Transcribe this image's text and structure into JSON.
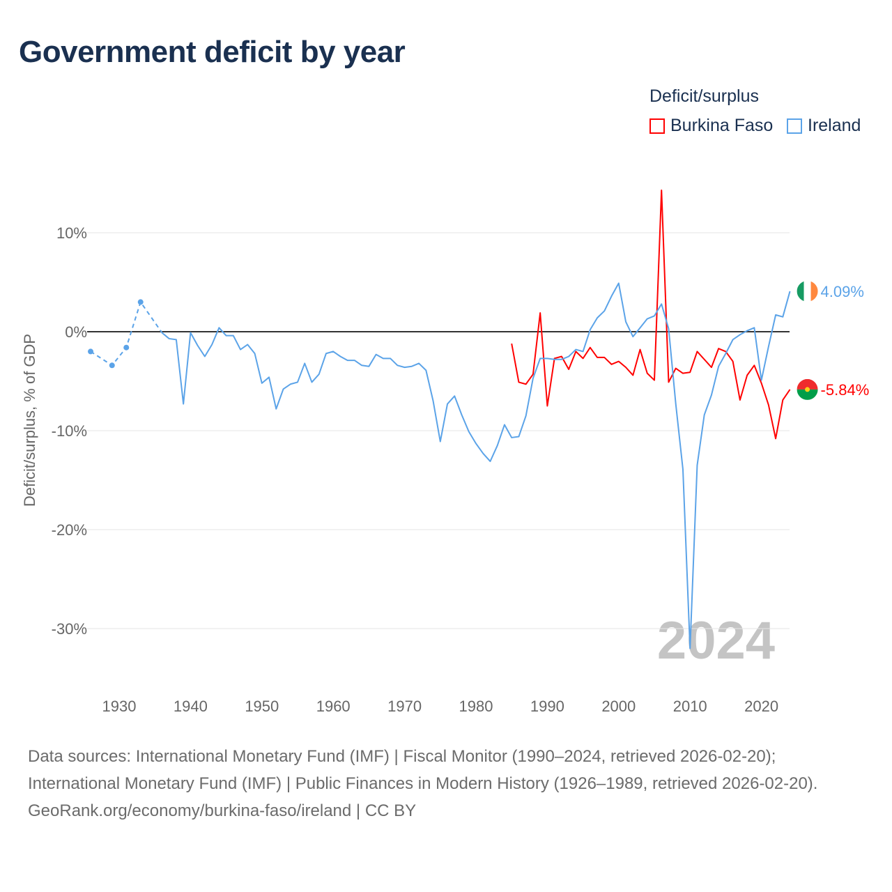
{
  "chart_data": {
    "type": "line",
    "title": "Government deficit by year",
    "xlabel": "",
    "ylabel": "Deficit/surplus, % of GDP",
    "xlim": [
      1926,
      2024
    ],
    "ylim": [
      -34,
      15
    ],
    "xticks": [
      1930,
      1940,
      1950,
      1960,
      1970,
      1980,
      1990,
      2000,
      2010,
      2020
    ],
    "xtick_labels": [
      "1930",
      "1940",
      "1950",
      "1960",
      "1970",
      "1980",
      "1990",
      "2000",
      "2010",
      "2020"
    ],
    "yticks": [
      10,
      0,
      -10,
      -20,
      -30
    ],
    "ytick_labels": [
      "10%",
      "0%",
      "-10%",
      "-20%",
      "-30%"
    ],
    "grid": true,
    "legend_title": "Deficit/surplus",
    "legend_placement": "top-right",
    "year_watermark": "2024",
    "series": [
      {
        "name": "Burkina Faso",
        "color": "#ff0000",
        "end_label": "-5.84%",
        "x": [
          1985,
          1986,
          1987,
          1988,
          1989,
          1990,
          1991,
          1992,
          1993,
          1994,
          1995,
          1996,
          1997,
          1998,
          1999,
          2000,
          2001,
          2002,
          2003,
          2004,
          2005,
          2006,
          2007,
          2008,
          2009,
          2010,
          2011,
          2012,
          2013,
          2014,
          2015,
          2016,
          2017,
          2018,
          2019,
          2020,
          2021,
          2022,
          2023,
          2024
        ],
        "y": [
          -1.2,
          -5.1,
          -5.3,
          -4.3,
          1.9,
          -7.5,
          -2.7,
          -2.5,
          -3.8,
          -2.0,
          -2.7,
          -1.6,
          -2.6,
          -2.6,
          -3.3,
          -3.0,
          -3.6,
          -4.4,
          -1.8,
          -4.2,
          -4.9,
          14.3,
          -5.1,
          -3.7,
          -4.2,
          -4.1,
          -2.0,
          -2.8,
          -3.6,
          -1.7,
          -2.0,
          -3.0,
          -6.9,
          -4.4,
          -3.4,
          -5.2,
          -7.4,
          -10.8,
          -6.9,
          -5.84
        ]
      },
      {
        "name": "Ireland",
        "color": "#5ba3e8",
        "end_label": "4.09%",
        "dashed_until": 1936,
        "x": [
          1926,
          1929,
          1931,
          1933,
          1936,
          1937,
          1938,
          1939,
          1940,
          1941,
          1942,
          1943,
          1944,
          1945,
          1946,
          1947,
          1948,
          1949,
          1950,
          1951,
          1952,
          1953,
          1954,
          1955,
          1956,
          1957,
          1958,
          1959,
          1960,
          1961,
          1962,
          1963,
          1964,
          1965,
          1966,
          1967,
          1968,
          1969,
          1970,
          1971,
          1972,
          1973,
          1974,
          1975,
          1976,
          1977,
          1978,
          1979,
          1980,
          1981,
          1982,
          1983,
          1984,
          1985,
          1986,
          1987,
          1988,
          1989,
          1990,
          1991,
          1992,
          1993,
          1994,
          1995,
          1996,
          1997,
          1998,
          1999,
          2000,
          2001,
          2002,
          2003,
          2004,
          2005,
          2006,
          2007,
          2008,
          2009,
          2010,
          2011,
          2012,
          2013,
          2014,
          2015,
          2016,
          2017,
          2018,
          2019,
          2020,
          2021,
          2022,
          2023,
          2024
        ],
        "y": [
          -2.0,
          -3.4,
          -1.6,
          3.0,
          -0.1,
          -0.7,
          -0.8,
          -7.3,
          -0.1,
          -1.4,
          -2.5,
          -1.3,
          0.4,
          -0.4,
          -0.4,
          -1.8,
          -1.3,
          -2.2,
          -5.2,
          -4.6,
          -7.8,
          -5.8,
          -5.3,
          -5.1,
          -3.2,
          -5.1,
          -4.3,
          -2.2,
          -2.0,
          -2.5,
          -2.9,
          -2.9,
          -3.4,
          -3.5,
          -2.3,
          -2.7,
          -2.7,
          -3.4,
          -3.6,
          -3.5,
          -3.2,
          -3.9,
          -7.0,
          -11.1,
          -7.3,
          -6.5,
          -8.4,
          -10.1,
          -11.3,
          -12.3,
          -13.1,
          -11.5,
          -9.4,
          -10.7,
          -10.6,
          -8.5,
          -4.7,
          -2.7,
          -2.7,
          -2.8,
          -2.8,
          -2.5,
          -1.8,
          -2.0,
          0.2,
          1.4,
          2.1,
          3.6,
          4.9,
          1.0,
          -0.5,
          0.4,
          1.3,
          1.6,
          2.8,
          0.3,
          -7.3,
          -13.9,
          -32.0,
          -13.5,
          -8.4,
          -6.4,
          -3.5,
          -2.2,
          -0.8,
          -0.3,
          0.1,
          0.4,
          -4.9,
          -1.5,
          1.7,
          1.5,
          4.09
        ]
      }
    ]
  },
  "footer": {
    "sources_line": "Data sources: International Monetary Fund (IMF) | Fiscal Monitor (1990–2024, retrieved 2026-02-20); International Monetary Fund (IMF) | Public Finances in Modern History (1926–1989, retrieved 2026-02-20).",
    "attribution": "GeoRank.org/economy/burkina-faso/ireland | CC BY"
  }
}
